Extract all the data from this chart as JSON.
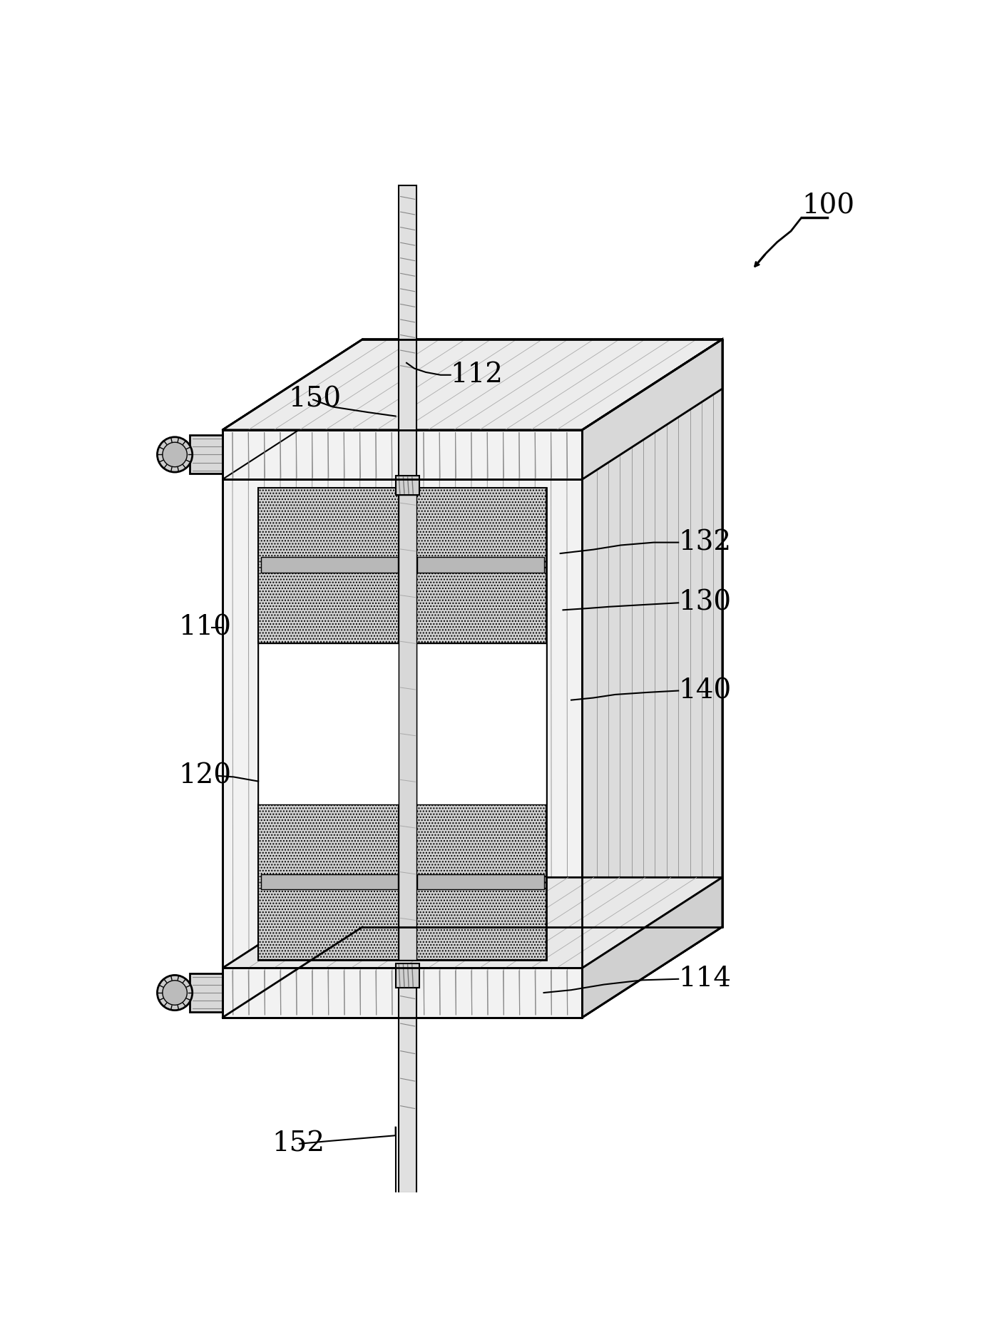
{
  "bg_color": "#ffffff",
  "figsize": [
    13.91,
    18.79
  ],
  "dpi": 100,
  "lw_thick": 2.0,
  "lw_med": 1.5,
  "lw_thin": 1.0,
  "lw_hair": 0.6,
  "body_gray": "#f2f2f2",
  "top_gray": "#e8e8e8",
  "side_gray": "#dcdcdc",
  "inner_gray": "#d4d4d4",
  "dot_gray": "#cccccc",
  "white": "#ffffff",
  "black": "#000000",
  "label_fs": 28
}
